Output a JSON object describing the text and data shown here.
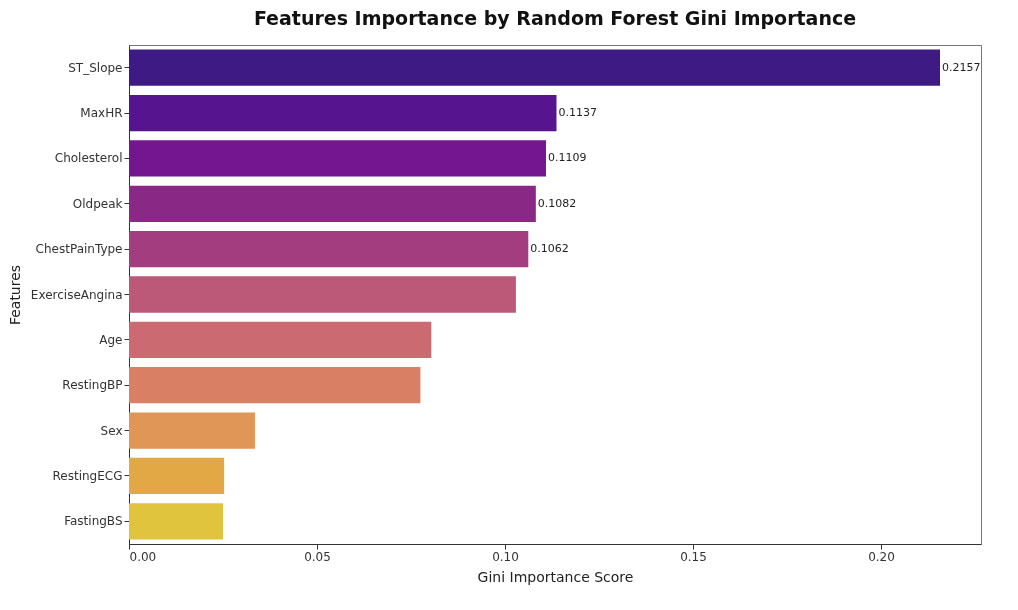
{
  "chart_data": {
    "type": "bar",
    "orientation": "horizontal",
    "title": "Features Importance by Random Forest Gini Importance",
    "xlabel": "Gini Importance Score",
    "ylabel": "Features",
    "categories": [
      "ST_Slope",
      "MaxHR",
      "Cholesterol",
      "Oldpeak",
      "ChestPainType",
      "ExerciseAngina",
      "Age",
      "RestingBP",
      "Sex",
      "RestingECG",
      "FastingBS"
    ],
    "values": [
      0.2157,
      0.1137,
      0.1109,
      0.1082,
      0.1062,
      0.1029,
      0.0804,
      0.0775,
      0.0335,
      0.0253,
      0.025
    ],
    "colors": [
      "#3d1a84",
      "#56148e",
      "#74168f",
      "#8a2886",
      "#a33d7f",
      "#bc5878",
      "#cb6a70",
      "#d98064",
      "#e09656",
      "#e3a846",
      "#e0c43e"
    ],
    "value_labels": [
      "0.2157",
      "0.1137",
      "0.1109",
      "0.1082",
      "0.1062",
      null,
      null,
      null,
      null,
      null,
      null
    ],
    "xlim": [
      0,
      0.2266
    ],
    "xticks": [
      {
        "value": 0,
        "label": "0.00"
      },
      {
        "value": 0.05,
        "label": "0.05"
      },
      {
        "value": 0.1,
        "label": "0.10"
      },
      {
        "value": 0.15,
        "label": "0.15"
      },
      {
        "value": 0.2,
        "label": "0.20"
      }
    ],
    "grid": false
  }
}
